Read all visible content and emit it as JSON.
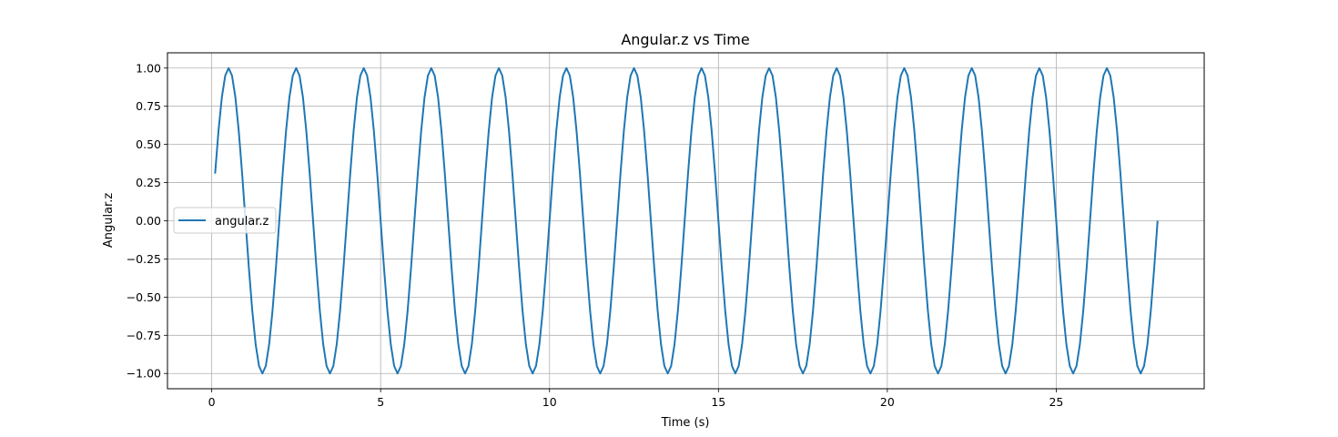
{
  "chart_data": {
    "type": "line",
    "title": "Angular.z vs Time",
    "xlabel": "Time (s)",
    "ylabel": "Angular.z",
    "xlim": [
      -1.31,
      29.38
    ],
    "ylim": [
      -1.1,
      1.1
    ],
    "xticks": [
      0,
      5,
      10,
      15,
      20,
      25
    ],
    "xtick_labels": [
      "0",
      "5",
      "10",
      "15",
      "20",
      "25"
    ],
    "yticks": [
      1.0,
      0.75,
      0.5,
      0.25,
      0.0,
      -0.25,
      -0.5,
      -0.75,
      -1.0
    ],
    "ytick_labels": [
      "1.00",
      "0.75",
      "0.50",
      "0.25",
      "0.00",
      "−0.25",
      "−0.50",
      "−0.75",
      "−1.00"
    ],
    "grid": true,
    "legend_position": "center-left",
    "series": [
      {
        "name": "angular.z",
        "color": "#1f77b4",
        "function": "sin(pi * t)",
        "x_start": 0.1,
        "x_end": 28.0,
        "x_step": 0.1
      }
    ]
  }
}
